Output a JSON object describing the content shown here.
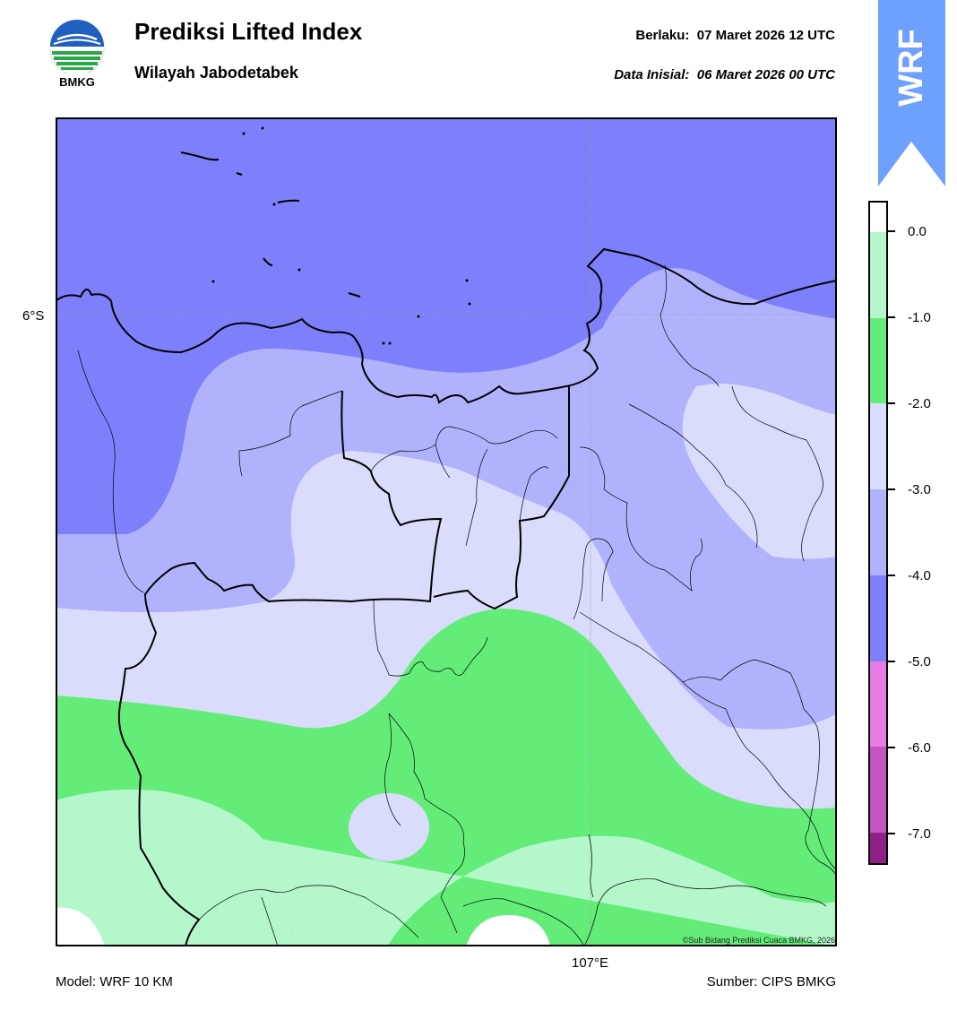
{
  "header": {
    "agency": "BMKG",
    "title": "Prediksi Lifted Index",
    "subtitle": "Wilayah Jabodetabek",
    "valid_label": "Berlaku:",
    "valid_time": "07 Maret 2026 12 UTC",
    "init_label": "Data Inisial:",
    "init_time": "06 Maret 2026 00 UTC"
  },
  "badge": {
    "text": "WRF",
    "color": "#6ea0ff"
  },
  "map": {
    "lat_label": "6°S",
    "lon_label": "107°E",
    "copyright": "©Sub Bidang Prediksi Cuaca BMKG, 2026",
    "region_name": "Jabodetabek"
  },
  "colorbar": {
    "ticks": [
      "0.0",
      "-1.0",
      "-2.0",
      "-3.0",
      "-4.0",
      "-5.0",
      "-6.0",
      "-7.0"
    ],
    "colors": {
      "above_0": "#ffffff",
      "0_to_-1": "#b3f7cb",
      "-1_to_-2": "#63ed78",
      "-2_to_-3": "#dadcfc",
      "-3_to_-4": "#b0b3fc",
      "-4_to_-5": "#7e80fb",
      "-5_to_-6": "#e67ce4",
      "-6_to_-7": "#c455c2",
      "below_-7": "#8f2088"
    }
  },
  "footer": {
    "model": "Model: WRF 10 KM",
    "source": "Sumber: CIPS BMKG"
  }
}
